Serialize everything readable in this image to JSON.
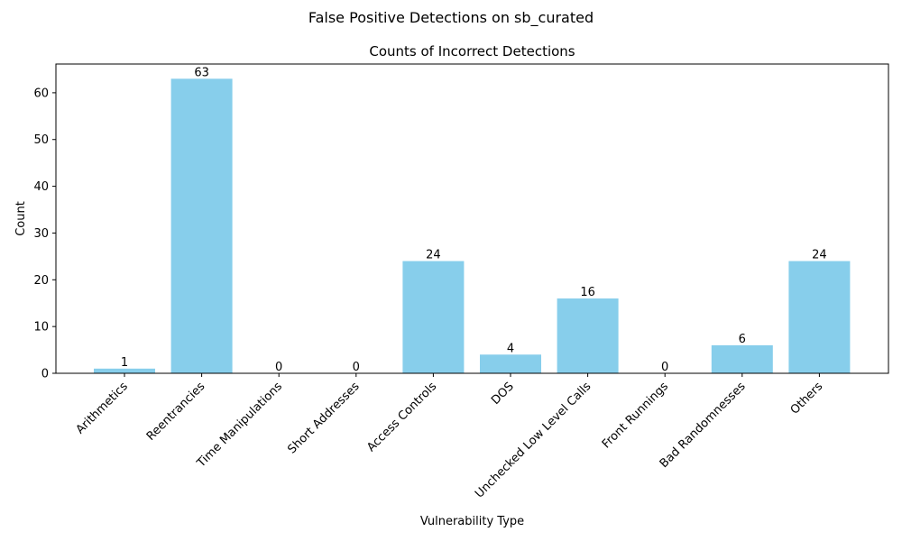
{
  "suptitle": "False Positive Detections on sb_curated",
  "chart_data": {
    "type": "bar",
    "title": "Counts of Incorrect Detections",
    "xlabel": "Vulnerability Type",
    "ylabel": "Count",
    "categories": [
      "Arithmetics",
      "Reentrancies",
      "Time Manipulations",
      "Short Addresses",
      "Access Controls",
      "DOS",
      "Unchecked Low Level Calls",
      "Front Runnings",
      "Bad Randomnesses",
      "Others"
    ],
    "values": [
      1,
      63,
      0,
      0,
      24,
      4,
      16,
      0,
      6,
      24
    ],
    "ylim": [
      0,
      66.15
    ],
    "yticks": [
      0,
      10,
      20,
      30,
      40,
      50,
      60
    ],
    "bar_color": "#87ceeb",
    "grid": false,
    "legend": "none"
  }
}
